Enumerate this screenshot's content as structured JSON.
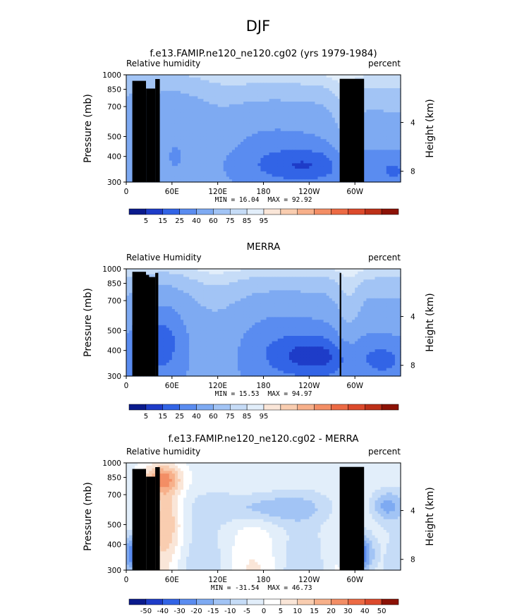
{
  "figure": {
    "title": "DJF"
  },
  "chart_data": [
    {
      "type": "heatmap",
      "title": "f.e13.FAMIP.ne120_ne120.cg02 (yrs 1979-1984)",
      "left_label": "Relative humidity",
      "right_label": "percent",
      "ylabel": "Pressure (mb)",
      "y2label": "Height (km)",
      "yticks": [
        "300",
        "400",
        "500",
        "700",
        "850",
        "1000"
      ],
      "ytick_values": [
        300,
        400,
        500,
        700,
        850,
        1000
      ],
      "y2ticks": [
        "8",
        "4"
      ],
      "y2tick_values": [
        8,
        4
      ],
      "xticks": [
        "0",
        "60E",
        "120E",
        "180",
        "120W",
        "60W"
      ],
      "xtick_values": [
        0,
        60,
        120,
        180,
        240,
        300
      ],
      "xlim": [
        0,
        360
      ],
      "ylim": [
        1000,
        300
      ],
      "min_text": "MIN =   16.04",
      "max_text": "MAX =   92.92",
      "stats": {
        "min": 16.04,
        "max": 92.92
      },
      "colorbar_levels": [
        "5",
        "15",
        "25",
        "40",
        "60",
        "75",
        "85",
        "95"
      ]
    },
    {
      "type": "heatmap",
      "title": "MERRA",
      "left_label": "Relative Humidity",
      "right_label": "percent",
      "ylabel": "Pressure (mb)",
      "y2label": "Height (km)",
      "yticks": [
        "300",
        "400",
        "500",
        "700",
        "850",
        "1000"
      ],
      "ytick_values": [
        300,
        400,
        500,
        700,
        850,
        1000
      ],
      "y2ticks": [
        "8",
        "4"
      ],
      "y2tick_values": [
        8,
        4
      ],
      "xticks": [
        "0",
        "60E",
        "120E",
        "180",
        "120W",
        "60W"
      ],
      "xtick_values": [
        0,
        60,
        120,
        180,
        240,
        300
      ],
      "xlim": [
        0,
        360
      ],
      "ylim": [
        1000,
        300
      ],
      "min_text": "MIN =   15.53",
      "max_text": "MAX =   94.97",
      "stats": {
        "min": 15.53,
        "max": 94.97
      },
      "colorbar_levels": [
        "5",
        "15",
        "25",
        "40",
        "60",
        "75",
        "85",
        "95"
      ]
    },
    {
      "type": "heatmap",
      "title": "f.e13.FAMIP.ne120_ne120.cg02 - MERRA",
      "left_label": "Relative humidity",
      "right_label": "percent",
      "ylabel": "Pressure (mb)",
      "y2label": "Height (km)",
      "yticks": [
        "300",
        "400",
        "500",
        "700",
        "850",
        "1000"
      ],
      "ytick_values": [
        300,
        400,
        500,
        700,
        850,
        1000
      ],
      "y2ticks": [
        "8",
        "4"
      ],
      "y2tick_values": [
        8,
        4
      ],
      "xticks": [
        "0",
        "60E",
        "120E",
        "180",
        "120W",
        "60W"
      ],
      "xtick_values": [
        0,
        60,
        120,
        180,
        240,
        300
      ],
      "xlim": [
        0,
        360
      ],
      "ylim": [
        1000,
        300
      ],
      "min_text": "MIN = -31.54",
      "max_text": "MAX =   46.73",
      "stats": {
        "min": -31.54,
        "max": 46.73
      },
      "colorbar_levels": [
        "-50",
        "-40",
        "-30",
        "-20",
        "-15",
        "-10",
        "-5",
        "0",
        "5",
        "10",
        "15",
        "20",
        "30",
        "40",
        "50"
      ]
    }
  ],
  "palettes": {
    "full": [
      "#0a1a8c",
      "#1e3cc8",
      "#3264e6",
      "#5a8cf0",
      "#7eaaf2",
      "#a2c4f5",
      "#c6dcf7",
      "#e2eefa",
      "#fae6d8",
      "#f9cdb0",
      "#f7b08a",
      "#f38e65",
      "#ec6a44",
      "#dc4a2c",
      "#bd3018",
      "#8c1206"
    ],
    "diff": [
      "#0a1a8c",
      "#1e3cc8",
      "#3264e6",
      "#5a8cf0",
      "#7eaaf2",
      "#a2c4f5",
      "#c6dcf7",
      "#e2eefa",
      "#ffffff",
      "#fae6d8",
      "#f9cdb0",
      "#f7b08a",
      "#f38e65",
      "#ec6a44",
      "#dc4a2c",
      "#8c1206"
    ],
    "topography": "#000000"
  }
}
